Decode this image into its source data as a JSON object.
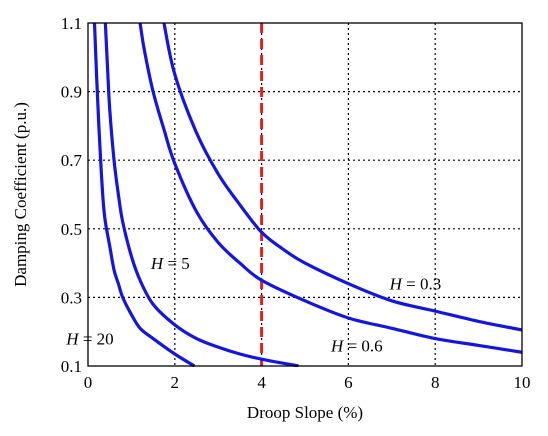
{
  "chart_data": {
    "type": "line",
    "title": "",
    "xlabel": "Droop Slope (%)",
    "ylabel": "Damping Coefficient (p.u.)",
    "xlim": [
      0,
      10
    ],
    "ylim": [
      0.1,
      1.1
    ],
    "xticks": [
      0,
      2,
      4,
      6,
      8,
      10
    ],
    "xtick_labels": [
      "0",
      "2",
      "4",
      "6",
      "8",
      "10"
    ],
    "yticks": [
      0.1,
      0.3,
      0.5,
      0.7,
      0.9,
      1.1
    ],
    "ytick_labels": [
      "0.1",
      "0.3",
      "0.5",
      "0.7",
      "0.9",
      "1.1"
    ],
    "grid": true,
    "series": [
      {
        "name": "H = 20",
        "color": "#1515e0",
        "x": [
          0.15,
          0.2,
          0.25,
          0.3,
          0.35,
          0.4,
          0.5,
          0.6,
          0.7,
          0.8,
          1.0,
          1.2,
          1.5,
          2.0,
          2.45
        ],
        "y": [
          1.1,
          0.94,
          0.8,
          0.68,
          0.58,
          0.52,
          0.45,
          0.38,
          0.34,
          0.3,
          0.25,
          0.21,
          0.18,
          0.135,
          0.1
        ]
      },
      {
        "name": "H = 5",
        "color": "#1515e0",
        "x": [
          0.4,
          0.45,
          0.5,
          0.6,
          0.7,
          0.8,
          1.0,
          1.2,
          1.5,
          2.0,
          2.5,
          3.0,
          3.5,
          4.0,
          4.85
        ],
        "y": [
          1.1,
          0.97,
          0.85,
          0.7,
          0.6,
          0.52,
          0.42,
          0.35,
          0.28,
          0.22,
          0.18,
          0.155,
          0.135,
          0.12,
          0.1
        ]
      },
      {
        "name": "H = 0.6",
        "color": "#1515e0",
        "x": [
          1.2,
          1.3,
          1.5,
          1.75,
          2.0,
          2.5,
          3.0,
          3.5,
          4.0,
          5.0,
          6.0,
          7.0,
          8.0,
          9.0,
          10.0
        ],
        "y": [
          1.1,
          1.02,
          0.9,
          0.79,
          0.69,
          0.55,
          0.46,
          0.4,
          0.35,
          0.29,
          0.24,
          0.21,
          0.18,
          0.16,
          0.14
        ]
      },
      {
        "name": "H = 0.3",
        "color": "#1515e0",
        "x": [
          1.75,
          2.0,
          2.5,
          3.0,
          3.5,
          4.0,
          4.5,
          5.0,
          6.0,
          7.0,
          8.0,
          9.0,
          10.0
        ],
        "y": [
          1.1,
          0.95,
          0.78,
          0.66,
          0.57,
          0.49,
          0.44,
          0.4,
          0.34,
          0.29,
          0.26,
          0.23,
          0.205
        ]
      }
    ],
    "reference_line": {
      "x": 4,
      "color": "#e02020",
      "style": "dashed"
    },
    "annotations": [
      {
        "text": "H = 20",
        "italic_part": "H",
        "x": -0.5,
        "y": 0.18
      },
      {
        "text": "H = 5",
        "italic_part": "H",
        "x": 1.45,
        "y": 0.4
      },
      {
        "text": "H = 0.6",
        "italic_part": "H",
        "x": 5.6,
        "y": 0.16
      },
      {
        "text": "H = 0.3",
        "italic_part": "H",
        "x": 6.95,
        "y": 0.34
      }
    ]
  }
}
